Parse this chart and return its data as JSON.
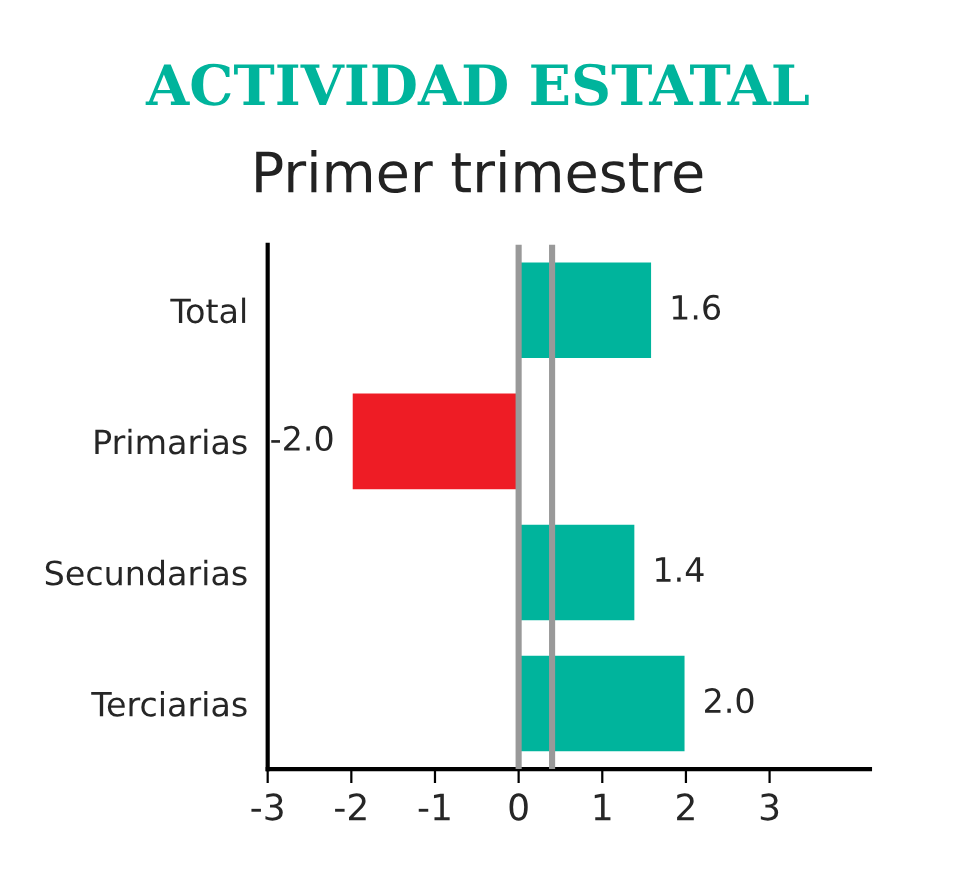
{
  "chart_data": {
    "type": "bar",
    "orientation": "horizontal",
    "title": "ACTIVIDAD ESTATAL",
    "subtitle": "Primer trimestre",
    "categories": [
      "Total",
      "Primarias",
      "Secundarias",
      "Terciarias"
    ],
    "values": [
      1.6,
      -2.0,
      1.4,
      2.0
    ],
    "colors": [
      "#00b49c",
      "#ee1c25",
      "#00b49c",
      "#00b49c"
    ],
    "value_labels": [
      "1.6",
      "-2.0",
      "1.4",
      "2.0"
    ],
    "xlim": [
      -3,
      4.2
    ],
    "xticks": [
      -3,
      -2,
      -1,
      0,
      1,
      2,
      3
    ],
    "ref_lines": [
      {
        "axis": "x",
        "value": 0,
        "color": "#999999"
      },
      {
        "axis": "x",
        "value": 0.4,
        "color": "#999999"
      }
    ],
    "grid": false,
    "legend": false
  }
}
